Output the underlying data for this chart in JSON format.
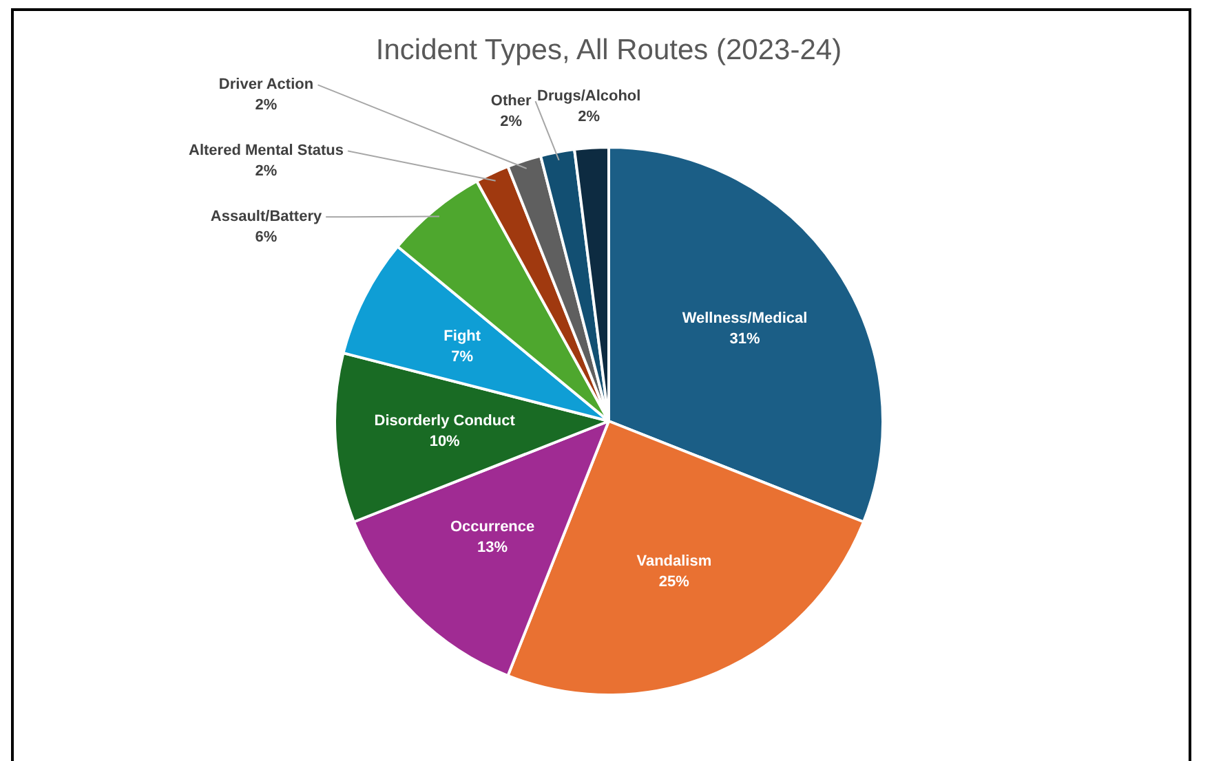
{
  "chart_data": {
    "type": "pie",
    "title": "Incident Types, All Routes (2023-24)",
    "categories": [
      "Wellness/Medical",
      "Vandalism",
      "Occurrence",
      "Disorderly Conduct",
      "Fight",
      "Assault/Battery",
      "Altered Mental Status",
      "Driver Action",
      "Other",
      "Drugs/Alcohol"
    ],
    "values": [
      31,
      25,
      13,
      10,
      7,
      6,
      2,
      2,
      2,
      2
    ],
    "value_labels": [
      "31%",
      "25%",
      "13%",
      "10%",
      "7%",
      "6%",
      "2%",
      "2%",
      "2%",
      "2%"
    ],
    "colors": [
      "#1b5e86",
      "#e97132",
      "#a02b93",
      "#196b24",
      "#0f9ed5",
      "#4ea72e",
      "#a0390f",
      "#5f5f5f",
      "#124f72",
      "#0d2b41"
    ],
    "legend": false
  }
}
